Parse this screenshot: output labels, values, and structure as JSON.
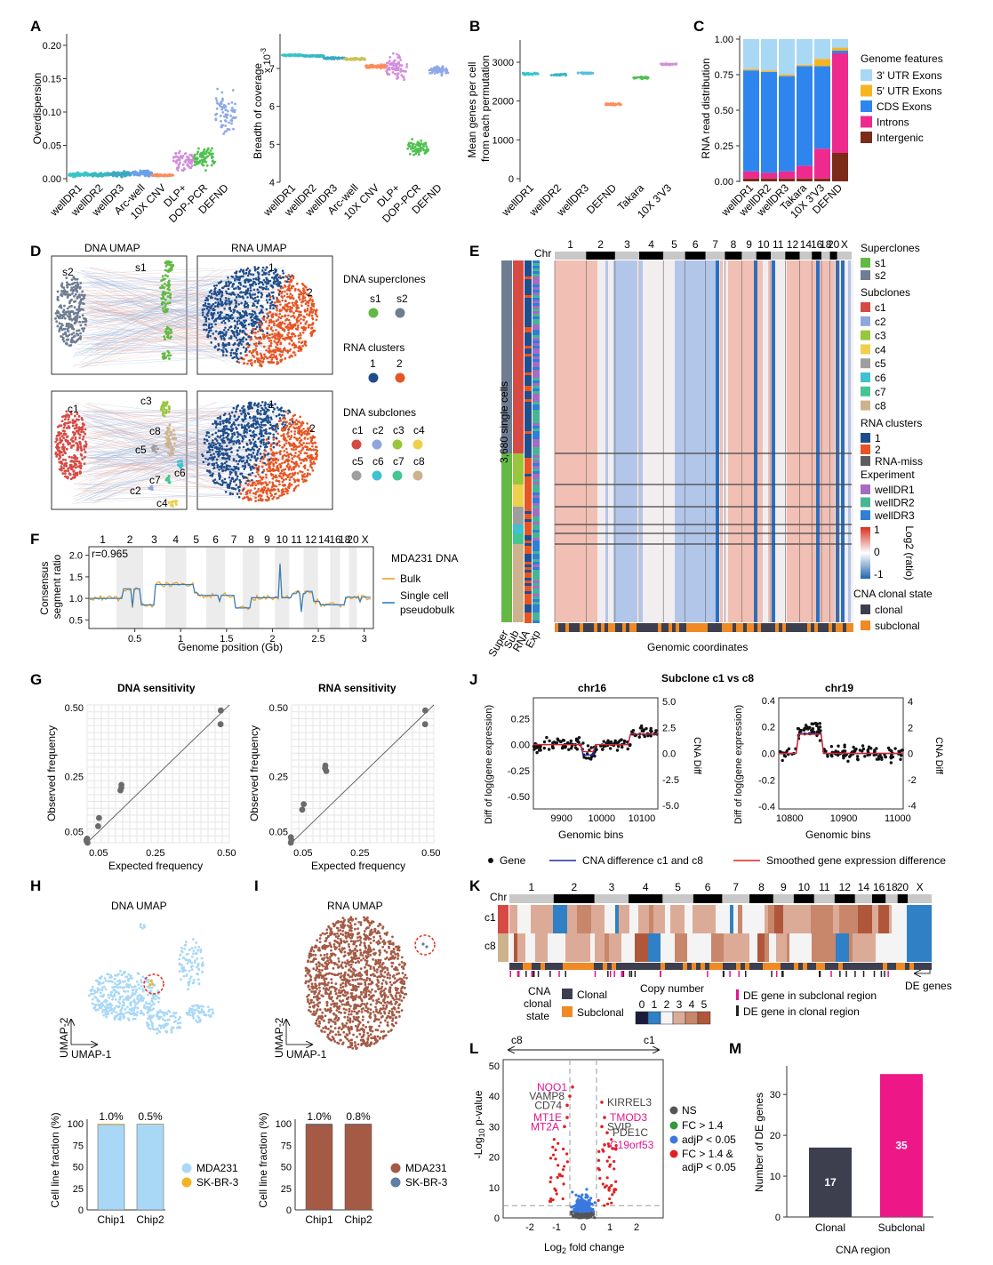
{
  "panels": {
    "A": "A",
    "B": "B",
    "C": "C",
    "D": "D",
    "E": "E",
    "F": "F",
    "G": "G",
    "H": "H",
    "I": "I",
    "J": "J",
    "K": "K",
    "L": "L",
    "M": "M"
  },
  "chart_data": [
    {
      "id": "A-overdispersion",
      "type": "scatter",
      "ylabel": "Overdispersion",
      "ylim": [
        0,
        0.22
      ],
      "yticks": [
        "0.00",
        "0.05",
        "0.10",
        "0.15",
        "0.20"
      ],
      "categories": [
        "wellDR1",
        "wellDR2",
        "wellDR3",
        "Arc-well",
        "10X CNV",
        "DLP+",
        "DOP-PCR",
        "DEFND"
      ],
      "colors": [
        "#36c5c7",
        "#38b7c4",
        "#3aa9c0",
        "#6aa0ea",
        "#ff8a5b",
        "#d28ddc",
        "#4fc14f",
        "#8ea9e8"
      ],
      "medians": [
        0.006,
        0.006,
        0.007,
        0.008,
        0.005,
        0.027,
        0.03,
        0.1
      ],
      "spreads": [
        0.004,
        0.004,
        0.005,
        0.006,
        0.002,
        0.025,
        0.025,
        0.05
      ]
    },
    {
      "id": "A-breadth",
      "type": "scatter",
      "ylabel": "Breadth of coverage",
      "ymult": "x 10",
      "yexp": "-3",
      "ylim": [
        4,
        7.4
      ],
      "yticks": [
        "4",
        "5",
        "6",
        "7"
      ],
      "categories": [
        "wellDR1",
        "wellDR2",
        "wellDR3",
        "Arc-well",
        "10X CNV",
        "DLP+",
        "DOP-PCR",
        "DEFND"
      ],
      "colors": [
        "#36c5c7",
        "#38b7c4",
        "#3aa9c0",
        "#cfc15a",
        "#ff8a5b",
        "#d28ddc",
        "#4fc14f",
        "#8ea9e8"
      ],
      "medians": [
        7.35,
        7.33,
        7.27,
        7.25,
        7.05,
        7.02,
        4.9,
        6.95
      ],
      "spreads": [
        0.03,
        0.03,
        0.04,
        0.04,
        0.08,
        0.5,
        0.3,
        0.15
      ]
    },
    {
      "id": "B-mean-genes",
      "type": "scatter",
      "ylabel": "Mean genes per cell from each permutation",
      "ylim": [
        0,
        3200
      ],
      "yticks": [
        "0",
        "1000",
        "2000",
        "3000"
      ],
      "categories": [
        "wellDR1",
        "wellDR2",
        "wellDR3",
        "DEFND",
        "Takara",
        "10X 3'V3"
      ],
      "colors": [
        "#36c5c7",
        "#38b7c4",
        "#55c0d8",
        "#ff8a5b",
        "#4fc14f",
        "#d28ddc"
      ],
      "values": [
        2700,
        2680,
        2720,
        1920,
        2600,
        2950
      ]
    },
    {
      "id": "C-read-distribution",
      "type": "bar",
      "ylabel": "RNA read distribution",
      "ylim": [
        0,
        1
      ],
      "yticks": [
        "0.00",
        "0.25",
        "0.50",
        "0.75",
        "1.00"
      ],
      "legend_title": "Genome features",
      "categories": [
        "wellDR1",
        "wellDR2",
        "wellDR3",
        "Takara",
        "10X 3'V3",
        "DEFND"
      ],
      "series": [
        {
          "name": "Intergenic",
          "color": "#7b2b17",
          "values": [
            0.02,
            0.02,
            0.02,
            0.02,
            0.02,
            0.2
          ]
        },
        {
          "name": "Introns",
          "color": "#ee2a8f",
          "values": [
            0.05,
            0.04,
            0.05,
            0.09,
            0.21,
            0.7
          ]
        },
        {
          "name": "CDS Exons",
          "color": "#2f85ee",
          "values": [
            0.71,
            0.71,
            0.67,
            0.7,
            0.58,
            0.02
          ]
        },
        {
          "name": "5' UTR Exons",
          "color": "#f6b520",
          "values": [
            0.01,
            0.01,
            0.01,
            0.01,
            0.05,
            0.02
          ]
        },
        {
          "name": "3' UTR Exons",
          "color": "#a9d8f4",
          "values": [
            0.21,
            0.22,
            0.25,
            0.18,
            0.14,
            0.06
          ]
        }
      ]
    },
    {
      "id": "F-segments",
      "type": "line",
      "legend_title": "MDA231 DNA",
      "ylabel": "Consensus segment ratio",
      "xlabel": "Genome position (Gb)",
      "annotation": "r=0.965",
      "xticks": [
        "0.5",
        "1",
        "1.5",
        "2",
        "2.5",
        "3"
      ],
      "yticks": [
        "0.5",
        "1.0",
        "1.5",
        "2.0"
      ],
      "chromosomes": [
        "1",
        "2",
        "3",
        "4",
        "5",
        "6",
        "7",
        "8",
        "9",
        "10",
        "11",
        "12",
        "14",
        "16",
        "18",
        "20",
        "X"
      ],
      "series": [
        {
          "name": "Bulk",
          "color": "#f0a020"
        },
        {
          "name": "Single cell pseudobulk",
          "color": "#2f7fc8"
        }
      ]
    },
    {
      "id": "G-dna-sensitivity",
      "type": "scatter",
      "title": "DNA sensitivity",
      "xlabel": "Expected frequency",
      "ylabel": "Observed frequency",
      "xticks": [
        "0.05",
        "0.25",
        "0.50"
      ],
      "yticks": [
        "0.05",
        "0.25",
        "0.50"
      ],
      "x": [
        0.01,
        0.01,
        0.01,
        0.01,
        0.05,
        0.05,
        0.13,
        0.13,
        0.13,
        0.48,
        0.48
      ],
      "y": [
        0.01,
        0.015,
        0.02,
        0.025,
        0.07,
        0.1,
        0.2,
        0.21,
        0.22,
        0.44,
        0.49
      ]
    },
    {
      "id": "G-rna-sensitivity",
      "type": "scatter",
      "title": "RNA sensitivity",
      "xlabel": "Expected frequency",
      "ylabel": "Observed frequency",
      "xticks": [
        "0.05",
        "0.25",
        "0.50"
      ],
      "yticks": [
        "0.05",
        "0.25",
        "0.50"
      ],
      "x": [
        0.01,
        0.01,
        0.01,
        0.05,
        0.05,
        0.13,
        0.13,
        0.13,
        0.48,
        0.48
      ],
      "y": [
        0.01,
        0.02,
        0.03,
        0.13,
        0.15,
        0.27,
        0.28,
        0.29,
        0.44,
        0.49
      ]
    },
    {
      "id": "H-cell-fraction",
      "type": "bar",
      "ylabel": "Cell line fraction (%)",
      "yticks": [
        "0",
        "25",
        "50",
        "75",
        "100"
      ],
      "categories": [
        "Chip1",
        "Chip2"
      ],
      "labels": [
        "1.0%",
        "0.5%"
      ],
      "series": [
        {
          "name": "MDA231",
          "color": "#a9d8f6",
          "values": [
            99.0,
            99.5
          ]
        },
        {
          "name": "SK-BR-3",
          "color": "#f4b324",
          "values": [
            1.0,
            0.5
          ]
        }
      ]
    },
    {
      "id": "I-cell-fraction",
      "type": "bar",
      "ylabel": "Cell line fraction (%)",
      "yticks": [
        "0",
        "25",
        "50",
        "75",
        "100"
      ],
      "categories": [
        "Chip1",
        "Chip2"
      ],
      "labels": [
        "1.0%",
        "0.8%"
      ],
      "series": [
        {
          "name": "MDA231",
          "color": "#a45a45",
          "values": [
            99.0,
            99.2
          ]
        },
        {
          "name": "SK-BR-3",
          "color": "#5e7ea4",
          "values": [
            1.0,
            0.8
          ]
        }
      ]
    },
    {
      "id": "J-chr16",
      "type": "scatter",
      "title": "chr16",
      "xlabel": "Genomic bins",
      "ylabel": "Diff of log(gene expression)",
      "y2label": "CNA Diff",
      "xticks": [
        "9900",
        "10000",
        "10100"
      ],
      "yticks": [
        "0.25",
        "0.00",
        "-0.25",
        "-0.50"
      ],
      "y2ticks": [
        "5.0",
        "2.5",
        "0.0",
        "-2.5",
        "-5.0"
      ]
    },
    {
      "id": "J-chr19",
      "type": "scatter",
      "title": "chr19",
      "xlabel": "Genomic bins",
      "ylabel": "Diff of log(gene expression)",
      "y2label": "CNA Diff",
      "xticks": [
        "10800",
        "10900",
        "11000"
      ],
      "yticks": [
        "0.4",
        "0.2",
        "0.0",
        "-0.2",
        "-0.4"
      ],
      "y2ticks": [
        "4",
        "2",
        "0",
        "-2",
        "-4"
      ]
    },
    {
      "id": "L-volcano",
      "type": "scatter",
      "xlabel": "Log2 fold change",
      "ylabel": "-Log10 p-value",
      "xticks": [
        "-2",
        "-1",
        "0",
        "1",
        "2"
      ],
      "yticks": [
        "0",
        "10",
        "20",
        "30",
        "40",
        "50"
      ],
      "arrow_left": "c8",
      "arrow_right": "c1",
      "labelled_genes": [
        {
          "gene": "NQO1",
          "x": -0.4,
          "y": 43,
          "color": "#e0158f"
        },
        {
          "gene": "VAMP8",
          "x": -0.5,
          "y": 40,
          "color": "#444"
        },
        {
          "gene": "CD74",
          "x": -0.6,
          "y": 37,
          "color": "#444"
        },
        {
          "gene": "MT1E",
          "x": -0.6,
          "y": 33,
          "color": "#e0158f"
        },
        {
          "gene": "MT2A",
          "x": -0.7,
          "y": 30,
          "color": "#e0158f"
        },
        {
          "gene": "KIRREL3",
          "x": 0.7,
          "y": 38,
          "color": "#444"
        },
        {
          "gene": "TMOD3",
          "x": 0.8,
          "y": 33,
          "color": "#e0158f"
        },
        {
          "gene": "SVIP",
          "x": 0.7,
          "y": 30,
          "color": "#444"
        },
        {
          "gene": "PDE1C",
          "x": 0.9,
          "y": 28,
          "color": "#444"
        },
        {
          "gene": "C19orf53",
          "x": 0.8,
          "y": 24,
          "color": "#e0158f"
        }
      ],
      "legend": [
        {
          "name": "NS",
          "color": "#555555"
        },
        {
          "name": "FC > 1.4",
          "color": "#2e9a3a"
        },
        {
          "name": "adjP < 0.05",
          "color": "#3a78e0"
        },
        {
          "name": "FC > 1.4 & adjP < 0.05",
          "color": "#e02020"
        }
      ]
    },
    {
      "id": "M-de-genes",
      "type": "bar",
      "xlabel": "CNA region",
      "ylabel": "Number of DE genes",
      "ylim": [
        0,
        37
      ],
      "yticks": [
        "0",
        "10",
        "20",
        "30"
      ],
      "categories": [
        "Clonal",
        "Subclonal"
      ],
      "values": [
        17,
        35
      ],
      "colors": [
        "#3d3f4f",
        "#ee1788"
      ]
    }
  ],
  "figure_text": {
    "A_xlabels": [
      "wellDR1",
      "wellDR2",
      "wellDR3",
      "Arc-well",
      "10X CNV",
      "DLP+",
      "DOP-PCR",
      "DEFND"
    ],
    "B_xlabels": [
      "wellDR1",
      "wellDR2",
      "wellDR3",
      "DEFND",
      "Takara",
      "10X 3'V3"
    ],
    "C_xlabels": [
      "wellDR1",
      "wellDR2",
      "wellDR3",
      "Takara",
      "10X 3'V3",
      "DEFND"
    ],
    "C_legend_title": "Genome features",
    "C_legend": [
      "3' UTR Exons",
      "5' UTR Exons",
      "CDS Exons",
      "Introns",
      "Intergenic"
    ],
    "D": {
      "dna_umap": "DNA UMAP",
      "rna_umap": "RNA UMAP",
      "superclone_title": "DNA superclones",
      "superclones": [
        "s1",
        "s2"
      ],
      "rna_cluster_title": "RNA clusters",
      "rna_clusters": [
        "1",
        "2"
      ],
      "subclone_title": "DNA subclones",
      "subclones": [
        "c1",
        "c2",
        "c3",
        "c4",
        "c5",
        "c6",
        "c7",
        "c8"
      ],
      "top_labels": [
        "s2",
        "s1",
        "1",
        "2"
      ],
      "bottom_labels": [
        "c1",
        "c3",
        "c8",
        "c5",
        "c6",
        "c7",
        "c2",
        "c4",
        "1",
        "2"
      ]
    },
    "E": {
      "chr_label": "Chr",
      "chr_numbers": [
        "1",
        "2",
        "3",
        "4",
        "5",
        "6",
        "7",
        "8",
        "9",
        "10",
        "11",
        "12",
        "14",
        "16",
        "18",
        "20",
        "X"
      ],
      "cells_label": "3,680 single cells",
      "row_labels": [
        "Super",
        "Sub",
        "RNA",
        "Exp"
      ],
      "xlabel": "Genomic coordinates",
      "legend_superclones": "Superclones",
      "superclones": [
        "s1",
        "s2"
      ],
      "legend_subclones": "Subclones",
      "subclones": [
        "c1",
        "c2",
        "c3",
        "c4",
        "c5",
        "c6",
        "c7",
        "c8"
      ],
      "legend_rna": "RNA clusters",
      "rna": [
        "1",
        "2",
        "RNA-miss"
      ],
      "legend_exp": "Experiment",
      "experiments": [
        "wellDR1",
        "wellDR2",
        "wellDR3"
      ],
      "scale_label": "Log2 (ratio)",
      "scale_ticks": [
        "1",
        "0",
        "-1"
      ],
      "cna_title": "CNA clonal state",
      "cna_states": [
        "clonal",
        "subclonal"
      ]
    },
    "F_legend": [
      "Bulk",
      "Single cell pseudobulk"
    ],
    "H": {
      "umap_title": "DNA UMAP",
      "ylab": "UMAP-2",
      "xlab": "UMAP-1",
      "legend": [
        "MDA231",
        "SK-BR-3"
      ]
    },
    "I": {
      "umap_title": "RNA UMAP",
      "ylab": "UMAP-2",
      "xlab": "UMAP-1",
      "legend": [
        "MDA231",
        "SK-BR-3"
      ]
    },
    "J": {
      "title": "Subclone c1 vs c8",
      "legend": [
        "Gene",
        "CNA difference c1 and c8",
        "Smoothed  gene expression difference"
      ]
    },
    "K": {
      "chr_label": "Chr",
      "chr_numbers": [
        "1",
        "2",
        "3",
        "4",
        "5",
        "6",
        "7",
        "8",
        "9",
        "10",
        "11",
        "12",
        "14",
        "16",
        "18",
        "20",
        "X"
      ],
      "rows": [
        "c1",
        "c8"
      ],
      "cna_label": "CNA clonal state",
      "cna_states": [
        "Clonal",
        "Subclonal"
      ],
      "copy_title": "Copy number",
      "copy_numbers": [
        "0",
        "1",
        "2",
        "3",
        "4",
        "5"
      ],
      "de_legend": [
        "DE gene in subclonal region",
        "DE gene in clonal region"
      ],
      "de_genes": "DE genes"
    }
  },
  "colors": {
    "s1": "#63b944",
    "s2": "#6e7d92",
    "cluster1": "#1f4e8c",
    "cluster2": "#e65523",
    "c1": "#d64a44",
    "c2": "#8da7de",
    "c3": "#99c63b",
    "c4": "#efd04a",
    "c5": "#9e9e9e",
    "c6": "#3fc1d0",
    "c7": "#45c591",
    "c8": "#ccb38d",
    "wellDR1": "#a56cc1",
    "wellDR2": "#46b596",
    "wellDR3": "#2f7ed8",
    "clonal": "#3d3f4f",
    "subclonal": "#f08a24"
  }
}
